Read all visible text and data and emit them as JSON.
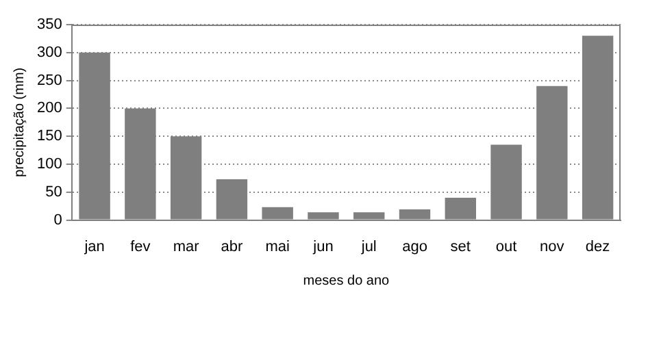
{
  "chart_data": {
    "type": "bar",
    "xlabel": "meses do ano",
    "ylabel": "precipitação (mm)",
    "categories": [
      "jan",
      "fev",
      "mar",
      "abr",
      "mai",
      "jun",
      "jul",
      "ago",
      "set",
      "out",
      "nov",
      "dez"
    ],
    "values": [
      300,
      200,
      150,
      73,
      23,
      14,
      14,
      19,
      40,
      135,
      240,
      330
    ],
    "color": "#7f7f7f",
    "ylim": [
      0,
      350
    ],
    "yticks": [
      0,
      50,
      100,
      150,
      200,
      250,
      300,
      350
    ],
    "grid": "y",
    "legend": false
  }
}
